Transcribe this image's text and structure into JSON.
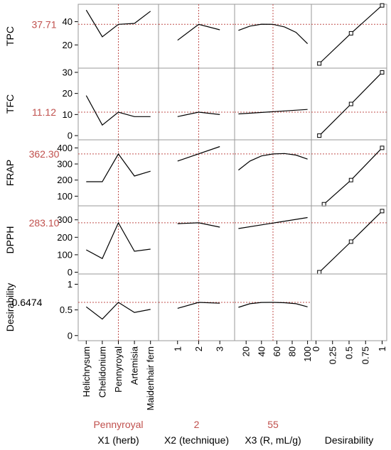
{
  "chart_data": {
    "type": "line",
    "colors": {
      "current": "#c0504d",
      "line": "#000000",
      "grid": "#9a9a9a",
      "text": "#000000"
    },
    "columns": [
      {
        "key": "x1",
        "label": "X1 (herb)",
        "current": "Pennyroyal",
        "categories": [
          "Helichrysum",
          "Chelidonium",
          "Pennyroyal",
          "Artemisia",
          "Maidenhair fern"
        ]
      },
      {
        "key": "x2",
        "label": "X2 (technique)",
        "current": "2",
        "current_value": 2,
        "xlim": [
          0.1,
          3.7
        ],
        "ticks": [
          "1",
          "2",
          "3"
        ]
      },
      {
        "key": "x3",
        "label": "X3 (R, mL/g)",
        "current": "55",
        "current_value": 55,
        "xlim": [
          5,
          105
        ],
        "ticks": [
          "20",
          "40",
          "60",
          "80",
          "100"
        ]
      },
      {
        "key": "des",
        "label": "Desirability",
        "xlim": [
          -0.07,
          1.07
        ],
        "ticks": [
          "0",
          "0.25",
          "0.5",
          "0.75",
          "1"
        ]
      }
    ],
    "responses": [
      {
        "name": "TPC",
        "current": "37.71",
        "current_value": 37.71,
        "ylim": [
          0,
          55
        ],
        "ticks": [
          "20",
          "40"
        ],
        "tick_values": [
          20,
          40
        ],
        "x1": [
          50,
          27,
          37.71,
          38.5,
          49
        ],
        "x2": {
          "x": [
            1,
            2,
            3
          ],
          "y": [
            24,
            37.71,
            33
          ]
        },
        "x3": {
          "x": [
            10,
            25,
            40,
            55,
            70,
            85,
            100
          ],
          "y": [
            32.5,
            36.2,
            37.8,
            37.71,
            35.5,
            30.8,
            21
          ]
        },
        "desirability": {
          "x": [
            0.05,
            0.53,
            1.0
          ],
          "y": [
            4,
            30,
            54
          ]
        }
      },
      {
        "name": "TFC",
        "current": "11.12",
        "current_value": 11.12,
        "ylim": [
          -2,
          32
        ],
        "ticks": [
          "0",
          "10",
          "20",
          "30"
        ],
        "tick_values": [
          0,
          10,
          20,
          30
        ],
        "x1": [
          19,
          5,
          11.12,
          9,
          9
        ],
        "x2": {
          "x": [
            1,
            2,
            3
          ],
          "y": [
            9,
            11.12,
            10
          ]
        },
        "x3": {
          "x": [
            10,
            100
          ],
          "y": [
            10.3,
            12.4
          ]
        },
        "desirability": {
          "x": [
            0.05,
            0.53,
            1.0
          ],
          "y": [
            0,
            15,
            30
          ]
        }
      },
      {
        "name": "FRAP",
        "current": "362.30",
        "current_value": 362.3,
        "ylim": [
          40,
          450
        ],
        "ticks": [
          "100",
          "200",
          "300",
          "400"
        ],
        "tick_values": [
          100,
          200,
          300,
          400
        ],
        "x1": [
          190,
          190,
          362.3,
          225,
          255
        ],
        "x2": {
          "x": [
            1,
            3
          ],
          "y": [
            318,
            408
          ]
        },
        "x3": {
          "x": [
            10,
            25,
            40,
            55,
            70,
            85,
            100
          ],
          "y": [
            262,
            318,
            350,
            362.3,
            365,
            355,
            330
          ]
        },
        "desirability": {
          "x": [
            0.12,
            0.53,
            1.0
          ],
          "y": [
            50,
            200,
            400
          ]
        }
      },
      {
        "name": "DPPH",
        "current": "283.10",
        "current_value": 283.1,
        "ylim": [
          -10,
          380
        ],
        "ticks": [
          "0",
          "100",
          "200",
          "300"
        ],
        "tick_values": [
          0,
          100,
          200,
          300
        ],
        "x1": [
          128,
          78,
          283.1,
          120,
          132
        ],
        "x2": {
          "x": [
            1,
            2,
            3
          ],
          "y": [
            278,
            283.1,
            258
          ]
        },
        "x3": {
          "x": [
            10,
            100
          ],
          "y": [
            250,
            313
          ]
        },
        "desirability": {
          "x": [
            0.05,
            0.53,
            1.0
          ],
          "y": [
            0,
            175,
            350
          ]
        }
      },
      {
        "name": "Desirability",
        "current": "0.6474",
        "current_value": 0.6474,
        "ylim": [
          -0.1,
          1.2
        ],
        "ticks": [
          "0",
          "0.5",
          "1"
        ],
        "tick_values": [
          0,
          0.5,
          1
        ],
        "x1": [
          0.56,
          0.32,
          0.6474,
          0.45,
          0.51
        ],
        "x2": {
          "x": [
            1,
            2,
            3
          ],
          "y": [
            0.53,
            0.6474,
            0.63
          ]
        },
        "x3": {
          "x": [
            10,
            25,
            40,
            55,
            70,
            85,
            100
          ],
          "y": [
            0.55,
            0.62,
            0.645,
            0.6474,
            0.64,
            0.62,
            0.56
          ]
        },
        "desirability": null
      }
    ]
  }
}
